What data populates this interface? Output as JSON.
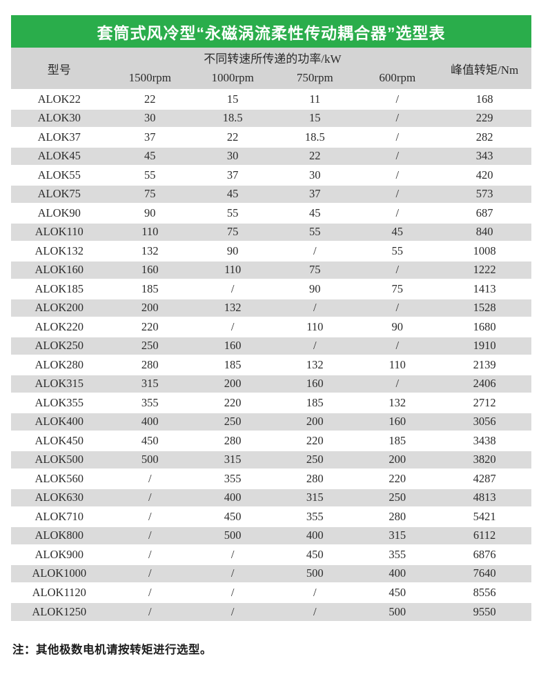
{
  "page": {
    "title": "套筒式风冷型“永磁涡流柔性传动耦合器”选型表",
    "note": "注：其他极数电机请按转矩进行选型。"
  },
  "colors": {
    "accent_green": "#2aad4b",
    "header_gray": "#d4d4d4",
    "stripe_gray": "#dbdbdb",
    "title_text": "#ffffff"
  },
  "table": {
    "model_header": "型号",
    "power_group_header": "不同转速所传递的功率/kW",
    "speed_headers": [
      "1500rpm",
      "1000rpm",
      "750rpm",
      "600rpm"
    ],
    "torque_header": "峰值转矩/Nm",
    "rows": [
      [
        "ALOK22",
        "22",
        "15",
        "11",
        "/",
        "168"
      ],
      [
        "ALOK30",
        "30",
        "18.5",
        "15",
        "/",
        "229"
      ],
      [
        "ALOK37",
        "37",
        "22",
        "18.5",
        "/",
        "282"
      ],
      [
        "ALOK45",
        "45",
        "30",
        "22",
        "/",
        "343"
      ],
      [
        "ALOK55",
        "55",
        "37",
        "30",
        "/",
        "420"
      ],
      [
        "ALOK75",
        "75",
        "45",
        "37",
        "/",
        "573"
      ],
      [
        "ALOK90",
        "90",
        "55",
        "45",
        "/",
        "687"
      ],
      [
        "ALOK110",
        "110",
        "75",
        "55",
        "45",
        "840"
      ],
      [
        "ALOK132",
        "132",
        "90",
        "/",
        "55",
        "1008"
      ],
      [
        "ALOK160",
        "160",
        "110",
        "75",
        "/",
        "1222"
      ],
      [
        "ALOK185",
        "185",
        "/",
        "90",
        "75",
        "1413"
      ],
      [
        "ALOK200",
        "200",
        "132",
        "/",
        "/",
        "1528"
      ],
      [
        "ALOK220",
        "220",
        "/",
        "110",
        "90",
        "1680"
      ],
      [
        "ALOK250",
        "250",
        "160",
        "/",
        "/",
        "1910"
      ],
      [
        "ALOK280",
        "280",
        "185",
        "132",
        "110",
        "2139"
      ],
      [
        "ALOK315",
        "315",
        "200",
        "160",
        "/",
        "2406"
      ],
      [
        "ALOK355",
        "355",
        "220",
        "185",
        "132",
        "2712"
      ],
      [
        "ALOK400",
        "400",
        "250",
        "200",
        "160",
        "3056"
      ],
      [
        "ALOK450",
        "450",
        "280",
        "220",
        "185",
        "3438"
      ],
      [
        "ALOK500",
        "500",
        "315",
        "250",
        "200",
        "3820"
      ],
      [
        "ALOK560",
        "/",
        "355",
        "280",
        "220",
        "4287"
      ],
      [
        "ALOK630",
        "/",
        "400",
        "315",
        "250",
        "4813"
      ],
      [
        "ALOK710",
        "/",
        "450",
        "355",
        "280",
        "5421"
      ],
      [
        "ALOK800",
        "/",
        "500",
        "400",
        "315",
        "6112"
      ],
      [
        "ALOK900",
        "/",
        "/",
        "450",
        "355",
        "6876"
      ],
      [
        "ALOK1000",
        "/",
        "/",
        "500",
        "400",
        "7640"
      ],
      [
        "ALOK1120",
        "/",
        "/",
        "/",
        "450",
        "8556"
      ],
      [
        "ALOK1250",
        "/",
        "/",
        "/",
        "500",
        "9550"
      ]
    ]
  }
}
